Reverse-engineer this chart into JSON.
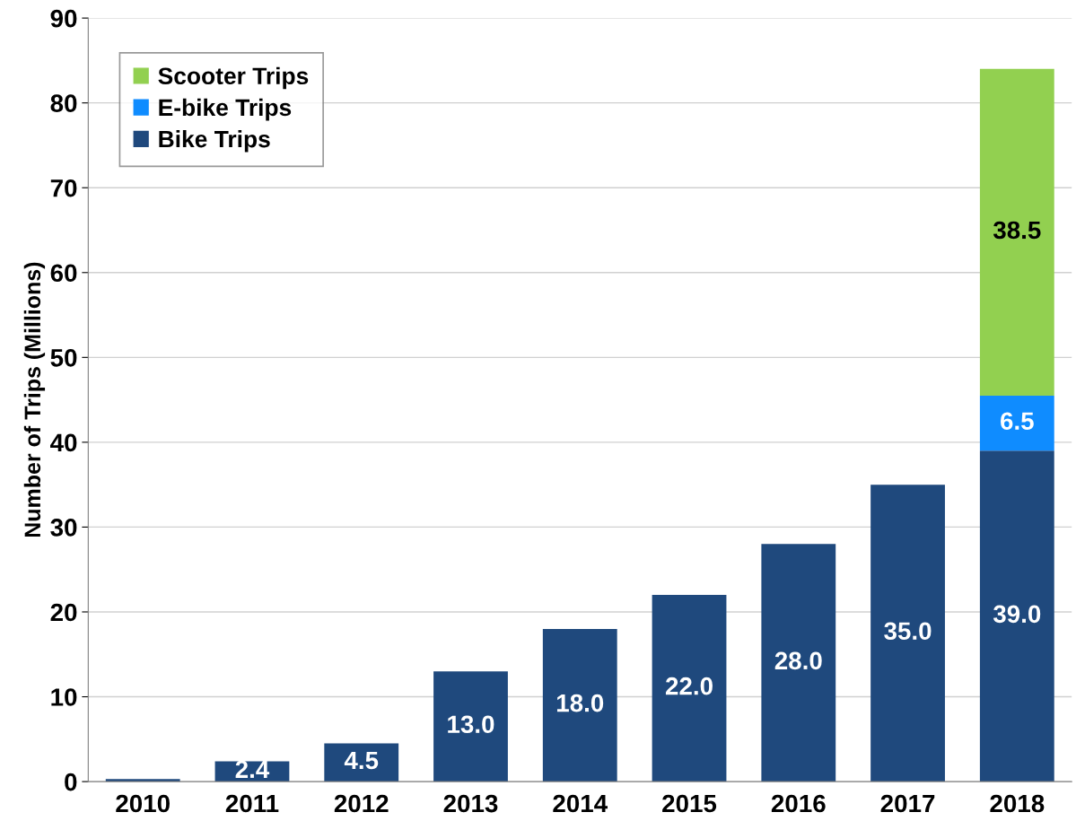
{
  "chart_data": {
    "type": "bar",
    "stacked": true,
    "ylabel": "Number of Trips (Millions)",
    "categories": [
      "2010",
      "2011",
      "2012",
      "2013",
      "2014",
      "2015",
      "2016",
      "2017",
      "2018"
    ],
    "series": [
      {
        "name": "Bike Trips",
        "color": "#1f497d",
        "values": [
          0.3,
          2.4,
          4.5,
          13.0,
          18.0,
          22.0,
          28.0,
          35.0,
          39.0
        ],
        "value_labels": [
          null,
          "2.4",
          "4.5",
          "13.0",
          "18.0",
          "22.0",
          "28.0",
          "35.0",
          "39.0"
        ]
      },
      {
        "name": "E-bike Trips",
        "color": "#0f8cff",
        "values": [
          null,
          null,
          null,
          null,
          null,
          null,
          null,
          null,
          6.5
        ],
        "value_labels": [
          null,
          null,
          null,
          null,
          null,
          null,
          null,
          null,
          "6.5"
        ]
      },
      {
        "name": "Scooter Trips",
        "color": "#92d050",
        "values": [
          null,
          null,
          null,
          null,
          null,
          null,
          null,
          null,
          38.5
        ],
        "value_labels": [
          null,
          null,
          null,
          null,
          null,
          null,
          null,
          null,
          "38.5"
        ]
      }
    ],
    "ylim": [
      0,
      90
    ],
    "yticks": [
      0,
      10,
      20,
      30,
      40,
      50,
      60,
      70,
      80,
      90
    ],
    "grid": "y",
    "legend": "top left"
  }
}
